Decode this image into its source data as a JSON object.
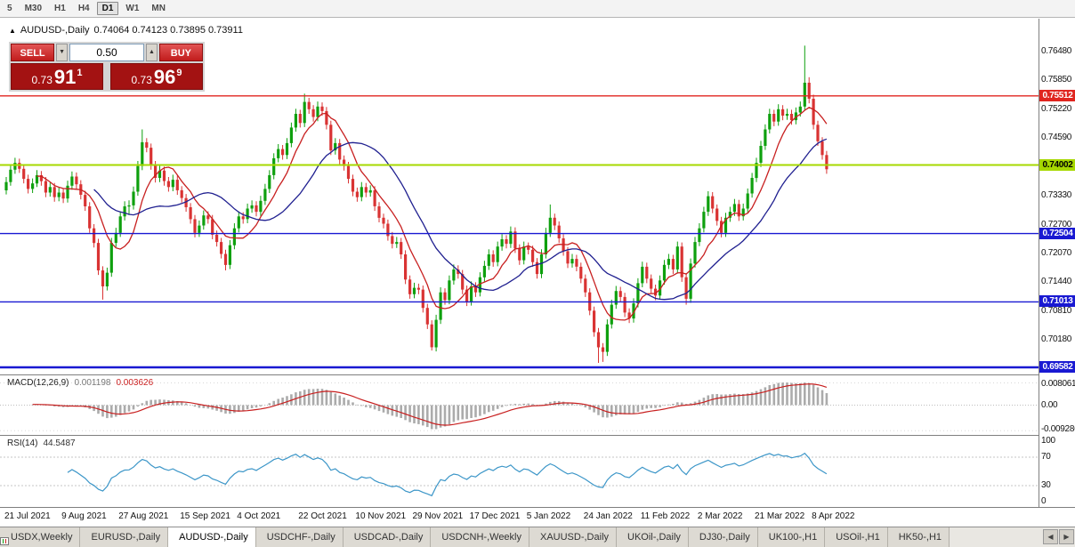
{
  "toolbar": {
    "timeframes": [
      "5",
      "M30",
      "H1",
      "H4",
      "D1",
      "W1",
      "MN"
    ],
    "active_timeframe": "D1"
  },
  "chart": {
    "title": {
      "symbol": "AUDUSD-,Daily",
      "ohlc": "0.74064 0.74123 0.73895 0.73911"
    },
    "trade_widget": {
      "sell_label": "SELL",
      "buy_label": "BUY",
      "volume": "0.50",
      "sell_price": {
        "prefix": "0.73",
        "big": "91",
        "sup": "1"
      },
      "buy_price": {
        "prefix": "0.73",
        "big": "96",
        "sup": "9"
      }
    },
    "price_axis": {
      "ticks": [
        "0.76480",
        "0.75850",
        "0.75220",
        "0.74590",
        "0.73960",
        "0.73330",
        "0.72700",
        "0.72070",
        "0.71440",
        "0.70810",
        "0.70180",
        "0.69550"
      ],
      "badges": [
        {
          "label": "0.75512",
          "price": 0.75512,
          "color": "#e0251f",
          "text_color": "#ffffff"
        },
        {
          "label": "0.74002",
          "price": 0.74002,
          "color": "#a6d800",
          "text_color": "#000000"
        },
        {
          "label": "0.72504",
          "price": 0.72504,
          "color": "#1919d2",
          "text_color": "#ffffff"
        },
        {
          "label": "0.71013",
          "price": 0.71013,
          "color": "#1919d2",
          "text_color": "#ffffff"
        },
        {
          "label": "0.69582",
          "price": 0.69582,
          "color": "#1919d2",
          "text_color": "#ffffff"
        }
      ]
    },
    "hlines": [
      {
        "price": 0.75512,
        "color": "#e0251f",
        "width": 1.4
      },
      {
        "price": 0.74002,
        "color": "#a6d800",
        "width": 2
      },
      {
        "price": 0.72504,
        "color": "#1919d2",
        "width": 1.4
      },
      {
        "price": 0.71013,
        "color": "#1919d2",
        "width": 1.4
      },
      {
        "price": 0.69582,
        "color": "#1919d2",
        "width": 2.4
      }
    ],
    "x_axis_labels": [
      {
        "label": "21 Jul 2021",
        "index": 0
      },
      {
        "label": "9 Aug 2021",
        "index": 13
      },
      {
        "label": "27 Aug 2021",
        "index": 26
      },
      {
        "label": "15 Sep 2021",
        "index": 40
      },
      {
        "label": "4 Oct 2021",
        "index": 53
      },
      {
        "label": "22 Oct 2021",
        "index": 67
      },
      {
        "label": "10 Nov 2021",
        "index": 80
      },
      {
        "label": "29 Nov 2021",
        "index": 93
      },
      {
        "label": "17 Dec 2021",
        "index": 106
      },
      {
        "label": "5 Jan 2022",
        "index": 119
      },
      {
        "label": "24 Jan 2022",
        "index": 132
      },
      {
        "label": "11 Feb 2022",
        "index": 145
      },
      {
        "label": "2 Mar 2022",
        "index": 158
      },
      {
        "label": "21 Mar 2022",
        "index": 171
      },
      {
        "label": "8 Apr 2022",
        "index": 184
      }
    ]
  },
  "indicators": {
    "macd": {
      "label": "MACD(12,26,9)",
      "value_main": "0.001198",
      "value_signal": "0.003626",
      "axis_labels": [
        "0.008061",
        "0.00",
        "-0.009286"
      ],
      "fast": 12,
      "slow": 26,
      "signal": 9,
      "hist_color": "#ababab",
      "line_color": "#c82020"
    },
    "rsi": {
      "label": "RSI(14)",
      "value": "44.5487",
      "axis_labels": [
        "100",
        "70",
        "30",
        "0"
      ],
      "period": 14,
      "levels": [
        70,
        30
      ],
      "line_color": "#3c96c8"
    }
  },
  "chart_data": {
    "type": "candlestick",
    "symbol": "AUDUSD",
    "timeframe": "Daily",
    "ylim": [
      0.6943,
      0.772
    ],
    "up_color": "#0ea00e",
    "down_color": "#d93333",
    "ma_fast": {
      "period": 8,
      "color": "#c82020"
    },
    "ma_slow": {
      "period": 21,
      "color": "#202090"
    },
    "candles": [
      [
        0.7345,
        0.7374,
        0.7336,
        0.7363
      ],
      [
        0.7363,
        0.7399,
        0.7355,
        0.739
      ],
      [
        0.739,
        0.7416,
        0.7381,
        0.7405
      ],
      [
        0.7405,
        0.7414,
        0.7383,
        0.7392
      ],
      [
        0.7392,
        0.7401,
        0.736,
        0.737
      ],
      [
        0.737,
        0.7379,
        0.7338,
        0.7348
      ],
      [
        0.7348,
        0.7371,
        0.7339,
        0.736
      ],
      [
        0.736,
        0.7389,
        0.7352,
        0.7378
      ],
      [
        0.7378,
        0.7387,
        0.7355,
        0.7365
      ],
      [
        0.7365,
        0.7374,
        0.733,
        0.734
      ],
      [
        0.734,
        0.7362,
        0.7331,
        0.7352
      ],
      [
        0.7352,
        0.7361,
        0.732,
        0.733
      ],
      [
        0.733,
        0.7351,
        0.7321,
        0.734
      ],
      [
        0.734,
        0.7349,
        0.7317,
        0.7327
      ],
      [
        0.7327,
        0.7366,
        0.7318,
        0.7355
      ],
      [
        0.7355,
        0.7386,
        0.7346,
        0.7375
      ],
      [
        0.7375,
        0.7384,
        0.7348,
        0.7358
      ],
      [
        0.7358,
        0.7367,
        0.7325,
        0.7335
      ],
      [
        0.7335,
        0.7344,
        0.73,
        0.731
      ],
      [
        0.731,
        0.7319,
        0.7252,
        0.7262
      ],
      [
        0.7262,
        0.7271,
        0.722,
        0.723
      ],
      [
        0.723,
        0.7239,
        0.716,
        0.717
      ],
      [
        0.717,
        0.7179,
        0.7106,
        0.7135
      ],
      [
        0.7135,
        0.7176,
        0.7126,
        0.7165
      ],
      [
        0.7165,
        0.7241,
        0.7156,
        0.723
      ],
      [
        0.723,
        0.7263,
        0.7221,
        0.7252
      ],
      [
        0.7252,
        0.7299,
        0.7243,
        0.7288
      ],
      [
        0.7288,
        0.7321,
        0.7279,
        0.731
      ],
      [
        0.731,
        0.7323,
        0.7291,
        0.7312
      ],
      [
        0.7312,
        0.7353,
        0.7303,
        0.7342
      ],
      [
        0.7342,
        0.7409,
        0.7333,
        0.7398
      ],
      [
        0.7398,
        0.7478,
        0.7389,
        0.745
      ],
      [
        0.745,
        0.7459,
        0.7428,
        0.7438
      ],
      [
        0.7438,
        0.7447,
        0.739,
        0.74
      ],
      [
        0.74,
        0.7409,
        0.7362,
        0.7372
      ],
      [
        0.7372,
        0.7399,
        0.7363,
        0.7388
      ],
      [
        0.7388,
        0.7397,
        0.7355,
        0.7365
      ],
      [
        0.7365,
        0.7374,
        0.7342,
        0.7352
      ],
      [
        0.7352,
        0.7379,
        0.7343,
        0.7368
      ],
      [
        0.7368,
        0.7377,
        0.7335,
        0.7345
      ],
      [
        0.7345,
        0.7354,
        0.7318,
        0.7328
      ],
      [
        0.7328,
        0.7337,
        0.7298,
        0.7308
      ],
      [
        0.7308,
        0.7317,
        0.7272,
        0.7282
      ],
      [
        0.7282,
        0.7291,
        0.7242,
        0.7252
      ],
      [
        0.7252,
        0.7279,
        0.7243,
        0.7268
      ],
      [
        0.7268,
        0.7301,
        0.7259,
        0.729
      ],
      [
        0.729,
        0.7299,
        0.7272,
        0.7282
      ],
      [
        0.7282,
        0.7291,
        0.7238,
        0.7248
      ],
      [
        0.7248,
        0.7257,
        0.7222,
        0.7232
      ],
      [
        0.7232,
        0.7241,
        0.7196,
        0.7206
      ],
      [
        0.7206,
        0.7215,
        0.717,
        0.7182
      ],
      [
        0.7182,
        0.7236,
        0.7173,
        0.7225
      ],
      [
        0.7225,
        0.7273,
        0.7216,
        0.7262
      ],
      [
        0.7262,
        0.7299,
        0.7253,
        0.7288
      ],
      [
        0.7288,
        0.7297,
        0.7272,
        0.7282
      ],
      [
        0.7282,
        0.7316,
        0.7273,
        0.7305
      ],
      [
        0.7305,
        0.7323,
        0.7296,
        0.7312
      ],
      [
        0.7312,
        0.7321,
        0.7288,
        0.7298
      ],
      [
        0.7298,
        0.7333,
        0.7289,
        0.7322
      ],
      [
        0.7322,
        0.7359,
        0.7313,
        0.7348
      ],
      [
        0.7348,
        0.7389,
        0.7339,
        0.7378
      ],
      [
        0.7378,
        0.7426,
        0.7369,
        0.7415
      ],
      [
        0.7415,
        0.7446,
        0.7406,
        0.7435
      ],
      [
        0.7435,
        0.7444,
        0.7412,
        0.7422
      ],
      [
        0.7422,
        0.7459,
        0.7413,
        0.7448
      ],
      [
        0.7448,
        0.7493,
        0.7439,
        0.7482
      ],
      [
        0.7482,
        0.7523,
        0.7473,
        0.7512
      ],
      [
        0.7512,
        0.7521,
        0.7482,
        0.7492
      ],
      [
        0.7492,
        0.7556,
        0.7483,
        0.7538
      ],
      [
        0.7538,
        0.7547,
        0.7512,
        0.7522
      ],
      [
        0.7522,
        0.7531,
        0.7495,
        0.7505
      ],
      [
        0.7505,
        0.7539,
        0.7496,
        0.7528
      ],
      [
        0.7528,
        0.7537,
        0.7508,
        0.7518
      ],
      [
        0.7518,
        0.7527,
        0.7478,
        0.7488
      ],
      [
        0.7488,
        0.7497,
        0.7422,
        0.7432
      ],
      [
        0.7432,
        0.7459,
        0.7423,
        0.7448
      ],
      [
        0.7448,
        0.7457,
        0.7402,
        0.7412
      ],
      [
        0.7412,
        0.7421,
        0.7388,
        0.7398
      ],
      [
        0.7398,
        0.7407,
        0.736,
        0.737
      ],
      [
        0.737,
        0.7379,
        0.7332,
        0.7342
      ],
      [
        0.7342,
        0.7351,
        0.732,
        0.733
      ],
      [
        0.733,
        0.7363,
        0.7321,
        0.7352
      ],
      [
        0.7352,
        0.7361,
        0.733,
        0.734
      ],
      [
        0.734,
        0.7356,
        0.7331,
        0.7345
      ],
      [
        0.7345,
        0.7354,
        0.73,
        0.731
      ],
      [
        0.731,
        0.7319,
        0.7275,
        0.7285
      ],
      [
        0.7285,
        0.7294,
        0.7262,
        0.7272
      ],
      [
        0.7272,
        0.7281,
        0.7235,
        0.7245
      ],
      [
        0.7245,
        0.7254,
        0.7218,
        0.7228
      ],
      [
        0.7228,
        0.7243,
        0.7219,
        0.7232
      ],
      [
        0.7232,
        0.7241,
        0.7195,
        0.7205
      ],
      [
        0.7205,
        0.7214,
        0.714,
        0.715
      ],
      [
        0.715,
        0.7159,
        0.7108,
        0.7118
      ],
      [
        0.7118,
        0.7143,
        0.7109,
        0.7132
      ],
      [
        0.7132,
        0.7141,
        0.7118,
        0.7128
      ],
      [
        0.7128,
        0.7137,
        0.7078,
        0.7088
      ],
      [
        0.7088,
        0.7097,
        0.7042,
        0.7052
      ],
      [
        0.7052,
        0.7061,
        0.6995,
        0.7002
      ],
      [
        0.7002,
        0.7073,
        0.6993,
        0.7062
      ],
      [
        0.7062,
        0.7133,
        0.7053,
        0.7122
      ],
      [
        0.7122,
        0.7131,
        0.7095,
        0.7105
      ],
      [
        0.7105,
        0.7159,
        0.7096,
        0.7148
      ],
      [
        0.7148,
        0.7183,
        0.7139,
        0.7172
      ],
      [
        0.7172,
        0.7181,
        0.7152,
        0.7162
      ],
      [
        0.7162,
        0.7171,
        0.7118,
        0.7128
      ],
      [
        0.7128,
        0.7137,
        0.7092,
        0.7102
      ],
      [
        0.7102,
        0.7146,
        0.7093,
        0.7135
      ],
      [
        0.7135,
        0.7144,
        0.7112,
        0.7122
      ],
      [
        0.7122,
        0.7166,
        0.7113,
        0.7155
      ],
      [
        0.7155,
        0.7191,
        0.7146,
        0.718
      ],
      [
        0.718,
        0.7216,
        0.7171,
        0.7205
      ],
      [
        0.7205,
        0.7214,
        0.7178,
        0.7188
      ],
      [
        0.7188,
        0.7233,
        0.7179,
        0.7222
      ],
      [
        0.7222,
        0.7249,
        0.7213,
        0.7238
      ],
      [
        0.7238,
        0.7247,
        0.7218,
        0.7228
      ],
      [
        0.7228,
        0.7266,
        0.7219,
        0.7255
      ],
      [
        0.7255,
        0.7264,
        0.7208,
        0.7218
      ],
      [
        0.7218,
        0.7227,
        0.7182,
        0.7192
      ],
      [
        0.7192,
        0.7233,
        0.7183,
        0.7222
      ],
      [
        0.7222,
        0.7231,
        0.7205,
        0.7215
      ],
      [
        0.7215,
        0.7224,
        0.7178,
        0.7188
      ],
      [
        0.7188,
        0.7197,
        0.7152,
        0.7162
      ],
      [
        0.7162,
        0.7216,
        0.7153,
        0.7205
      ],
      [
        0.7205,
        0.7263,
        0.7196,
        0.7252
      ],
      [
        0.7252,
        0.7314,
        0.7243,
        0.7285
      ],
      [
        0.7285,
        0.7294,
        0.7258,
        0.7268
      ],
      [
        0.7268,
        0.7277,
        0.723,
        0.724
      ],
      [
        0.724,
        0.7249,
        0.7202,
        0.7212
      ],
      [
        0.7212,
        0.7221,
        0.7175,
        0.7185
      ],
      [
        0.7185,
        0.7206,
        0.7176,
        0.7195
      ],
      [
        0.7195,
        0.7204,
        0.7168,
        0.7178
      ],
      [
        0.7178,
        0.7187,
        0.7142,
        0.7152
      ],
      [
        0.7152,
        0.7161,
        0.7112,
        0.7122
      ],
      [
        0.7122,
        0.7131,
        0.7072,
        0.7082
      ],
      [
        0.7082,
        0.7091,
        0.7025,
        0.7035
      ],
      [
        0.7035,
        0.7044,
        0.6968,
        0.7002
      ],
      [
        0.7002,
        0.7011,
        0.697,
        0.6992
      ],
      [
        0.6992,
        0.7063,
        0.6983,
        0.7052
      ],
      [
        0.7052,
        0.7106,
        0.7043,
        0.7095
      ],
      [
        0.7095,
        0.7136,
        0.7086,
        0.7125
      ],
      [
        0.7125,
        0.7134,
        0.7102,
        0.7112
      ],
      [
        0.7112,
        0.7121,
        0.7068,
        0.7078
      ],
      [
        0.7078,
        0.7087,
        0.7055,
        0.7065
      ],
      [
        0.7065,
        0.7109,
        0.7056,
        0.7098
      ],
      [
        0.7098,
        0.7153,
        0.7089,
        0.7142
      ],
      [
        0.7142,
        0.7189,
        0.7133,
        0.7178
      ],
      [
        0.7178,
        0.7187,
        0.7142,
        0.7152
      ],
      [
        0.7152,
        0.7161,
        0.712,
        0.713
      ],
      [
        0.713,
        0.7139,
        0.7105,
        0.7115
      ],
      [
        0.7115,
        0.7159,
        0.7106,
        0.7148
      ],
      [
        0.7148,
        0.7193,
        0.7139,
        0.7182
      ],
      [
        0.7182,
        0.7206,
        0.7173,
        0.7195
      ],
      [
        0.7195,
        0.7204,
        0.7162,
        0.7172
      ],
      [
        0.7172,
        0.7233,
        0.7163,
        0.7222
      ],
      [
        0.7222,
        0.7231,
        0.7145,
        0.7155
      ],
      [
        0.7155,
        0.7164,
        0.7095,
        0.7108
      ],
      [
        0.7108,
        0.7196,
        0.7099,
        0.7185
      ],
      [
        0.7185,
        0.7243,
        0.7176,
        0.7232
      ],
      [
        0.7232,
        0.7273,
        0.7223,
        0.7262
      ],
      [
        0.7262,
        0.7309,
        0.7253,
        0.7298
      ],
      [
        0.7298,
        0.7343,
        0.7289,
        0.7332
      ],
      [
        0.7332,
        0.7341,
        0.7295,
        0.7305
      ],
      [
        0.7305,
        0.7314,
        0.7268,
        0.7278
      ],
      [
        0.7278,
        0.7287,
        0.7242,
        0.7252
      ],
      [
        0.7252,
        0.7296,
        0.7243,
        0.7285
      ],
      [
        0.7285,
        0.7309,
        0.7276,
        0.7298
      ],
      [
        0.7298,
        0.7326,
        0.7289,
        0.7315
      ],
      [
        0.7315,
        0.7324,
        0.7278,
        0.7288
      ],
      [
        0.7288,
        0.7316,
        0.7279,
        0.7305
      ],
      [
        0.7305,
        0.7349,
        0.7296,
        0.7338
      ],
      [
        0.7338,
        0.7383,
        0.7329,
        0.7372
      ],
      [
        0.7372,
        0.7416,
        0.7363,
        0.7405
      ],
      [
        0.7405,
        0.7453,
        0.7396,
        0.7442
      ],
      [
        0.7442,
        0.7489,
        0.7433,
        0.7478
      ],
      [
        0.7478,
        0.7523,
        0.7469,
        0.7512
      ],
      [
        0.7512,
        0.7521,
        0.7485,
        0.7495
      ],
      [
        0.7495,
        0.7533,
        0.7486,
        0.7522
      ],
      [
        0.7522,
        0.7531,
        0.7498,
        0.7508
      ],
      [
        0.7508,
        0.7523,
        0.7499,
        0.7512
      ],
      [
        0.7512,
        0.7521,
        0.7488,
        0.7498
      ],
      [
        0.7498,
        0.7526,
        0.7489,
        0.7515
      ],
      [
        0.7515,
        0.7539,
        0.7506,
        0.7528
      ],
      [
        0.7528,
        0.7661,
        0.7519,
        0.758
      ],
      [
        0.758,
        0.7592,
        0.7535,
        0.7545
      ],
      [
        0.7545,
        0.7554,
        0.7478,
        0.7488
      ],
      [
        0.7488,
        0.7497,
        0.7442,
        0.7452
      ],
      [
        0.7452,
        0.7461,
        0.7412,
        0.7422
      ],
      [
        0.7422,
        0.7431,
        0.7381,
        0.7391
      ]
    ]
  },
  "bottom_tabs": {
    "items": [
      "USDX,Weekly",
      "EURUSD-,Daily",
      "AUDUSD-,Daily",
      "USDCHF-,Daily",
      "USDCAD-,Daily",
      "USDCNH-,Weekly",
      "XAUUSD-,Daily",
      "UKOil-,Daily",
      "DJ30-,Daily",
      "UK100-,H1",
      "USOil-,H1",
      "HK50-,H1"
    ],
    "active_index": 2,
    "scroll_left": "◀",
    "scroll_right": "▶"
  }
}
